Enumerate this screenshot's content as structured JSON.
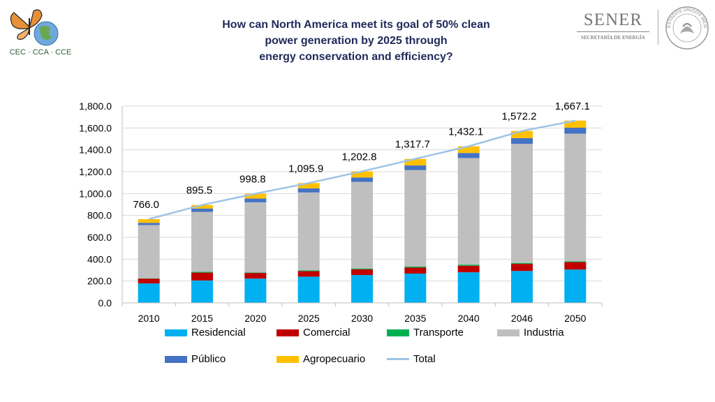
{
  "header": {
    "title_lines": [
      "How can North America meet its goal of 50% clean",
      "power generation by 2025 through",
      "energy conservation and efficiency?"
    ],
    "logo_left_text": "CEC · CCA · CCE",
    "sener_name": "SENER",
    "sener_sub": "SECRETARÍA DE ENERGÍA",
    "seal_text": "ESTADOS UNIDOS MEXICANOS"
  },
  "colors": {
    "Residencial": "#00b0f0",
    "Comercial": "#c00000",
    "Transporte": "#00b050",
    "Industria": "#bfbfbf",
    "Público": "#4472c4",
    "Agropecuario": "#ffc000",
    "Total": "#9dc3e6"
  },
  "chart_data": {
    "type": "bar",
    "stacked": true,
    "categories": [
      "2010",
      "2015",
      "2020",
      "2025",
      "2030",
      "2035",
      "2040",
      "2046",
      "2050"
    ],
    "series": [
      {
        "name": "Residencial",
        "values": [
          178,
          205,
          222,
          240,
          255,
          268,
          280,
          292,
          305
        ]
      },
      {
        "name": "Comercial",
        "values": [
          44,
          72,
          52,
          50,
          52,
          55,
          60,
          65,
          68
        ]
      },
      {
        "name": "Transporte",
        "values": [
          3,
          8,
          4,
          7,
          8,
          10,
          10,
          8,
          7
        ]
      },
      {
        "name": "Industria",
        "values": [
          487,
          548,
          642,
          713,
          792,
          882,
          975,
          1090,
          1168
        ]
      },
      {
        "name": "Público",
        "values": [
          20,
          30,
          34,
          37,
          40,
          42,
          46,
          52,
          54
        ]
      },
      {
        "name": "Agropecuario",
        "values": [
          34,
          32,
          45,
          49,
          56,
          60,
          61,
          65,
          65
        ]
      }
    ],
    "line_series": {
      "name": "Total",
      "values": [
        766.0,
        895.5,
        998.8,
        1095.9,
        1202.8,
        1317.7,
        1432.1,
        1572.2,
        1667.1
      ]
    },
    "data_labels": [
      "766.0",
      "895.5",
      "998.8",
      "1,095.9",
      "1,202.8",
      "1,317.7",
      "1,432.1",
      "1,572.2",
      "1,667.1"
    ],
    "ylim": [
      0,
      1800
    ],
    "y_ticks": [
      0,
      200,
      400,
      600,
      800,
      1000,
      1200,
      1400,
      1600,
      1800
    ],
    "y_tick_labels": [
      "0.0",
      "200.0",
      "400.0",
      "600.0",
      "800.0",
      "1,000.0",
      "1,200.0",
      "1,400.0",
      "1,600.0",
      "1,800.0"
    ],
    "legend": [
      "Residencial",
      "Comercial",
      "Transporte",
      "Industria",
      "Público",
      "Agropecuario",
      "Total"
    ],
    "legend_position": "bottom",
    "grid": true
  }
}
